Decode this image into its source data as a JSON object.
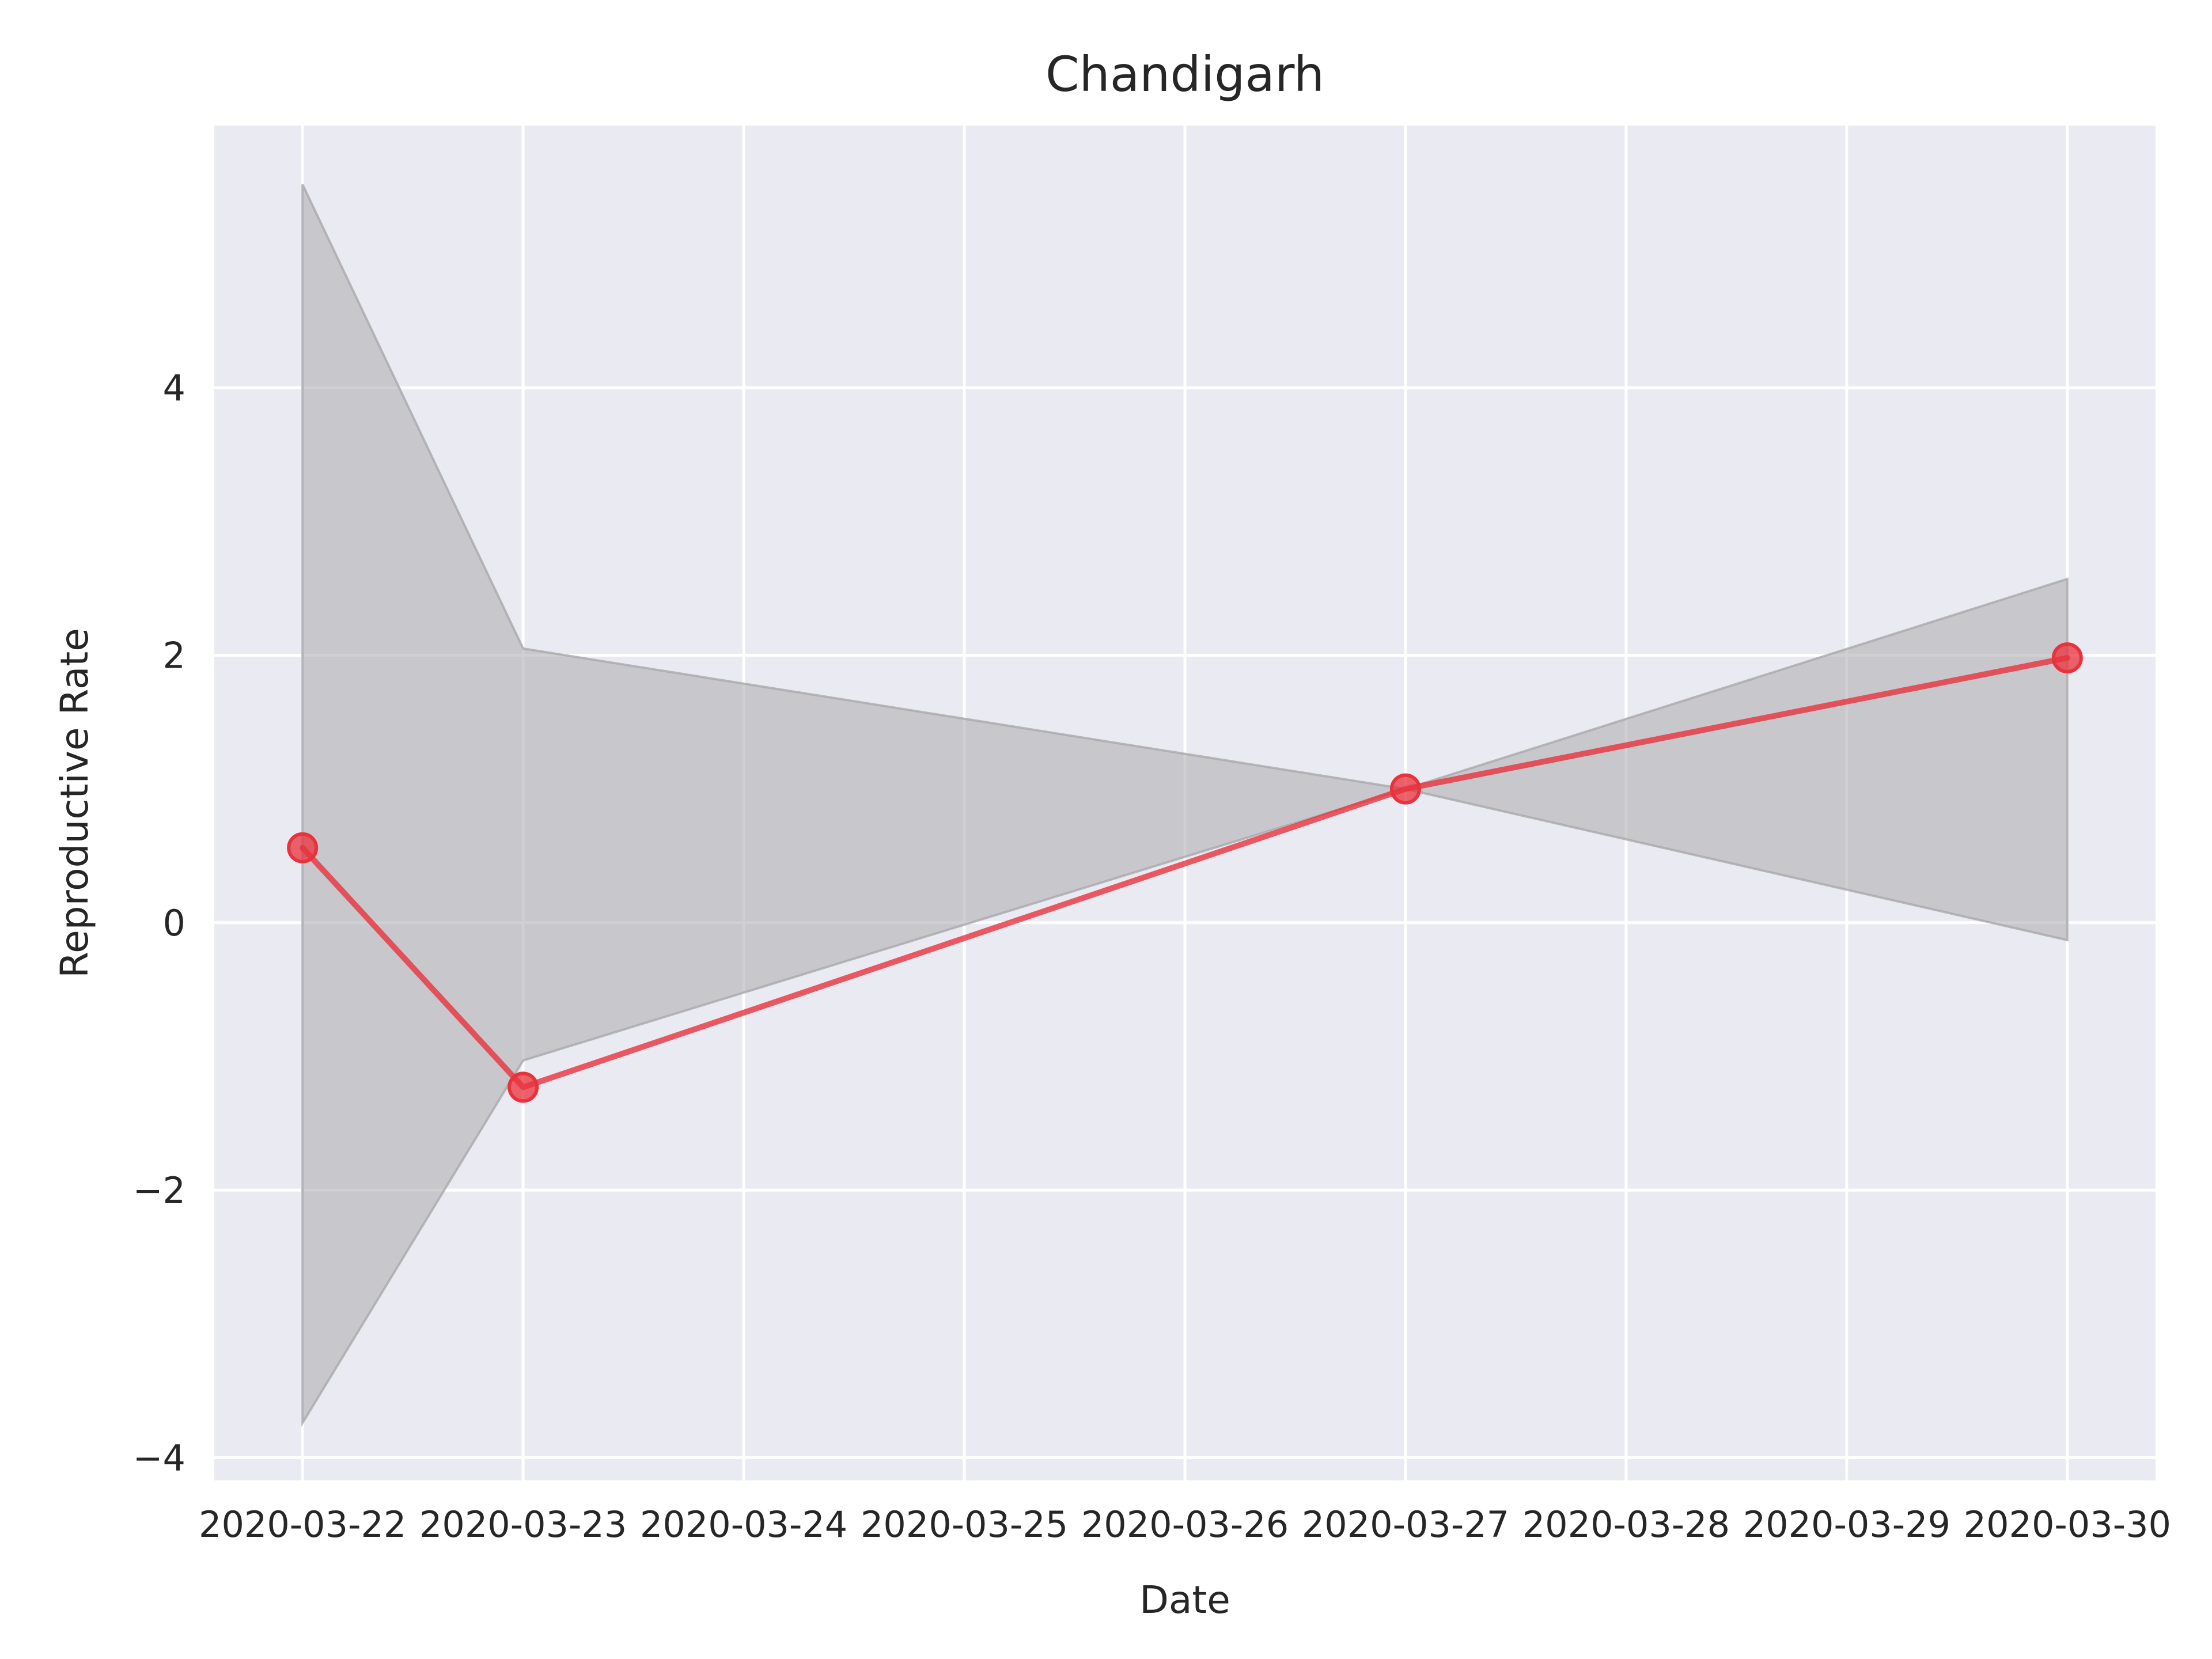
{
  "chart_data": {
    "type": "line",
    "title": "Chandigarh",
    "xlabel": "Date",
    "ylabel": "Reproductive Rate",
    "x_ticks": [
      "2020-03-22",
      "2020-03-23",
      "2020-03-24",
      "2020-03-25",
      "2020-03-26",
      "2020-03-27",
      "2020-03-28",
      "2020-03-29",
      "2020-03-30"
    ],
    "y_ticks": [
      {
        "value": -4,
        "label": "−4"
      },
      {
        "value": -2,
        "label": "−2"
      },
      {
        "value": 0,
        "label": "0"
      },
      {
        "value": 2,
        "label": "2"
      },
      {
        "value": 4,
        "label": "4"
      }
    ],
    "xlim": [
      "2020-03-21.6",
      "2020-03-30.4"
    ],
    "ylim": [
      -4.17,
      5.96
    ],
    "grid": true,
    "series": [
      {
        "x": [
          "2020-03-22",
          "2020-03-23",
          "2020-03-27",
          "2020-03-30"
        ],
        "y": [
          0.56,
          -1.23,
          1.0,
          1.98
        ],
        "color": "#e8323c",
        "marker": "circle"
      }
    ],
    "band": {
      "x": [
        "2020-03-22",
        "2020-03-23",
        "2020-03-27",
        "2020-03-30"
      ],
      "lower": [
        -3.74,
        -1.03,
        1.0,
        -0.13
      ],
      "upper": [
        5.52,
        2.05,
        1.0,
        2.57
      ],
      "color": "#a9a9ad"
    },
    "colors": {
      "plot_background": "#eaeaf2",
      "grid": "#ffffff",
      "line": "#e8323c",
      "band": "#a9a9ad"
    }
  }
}
